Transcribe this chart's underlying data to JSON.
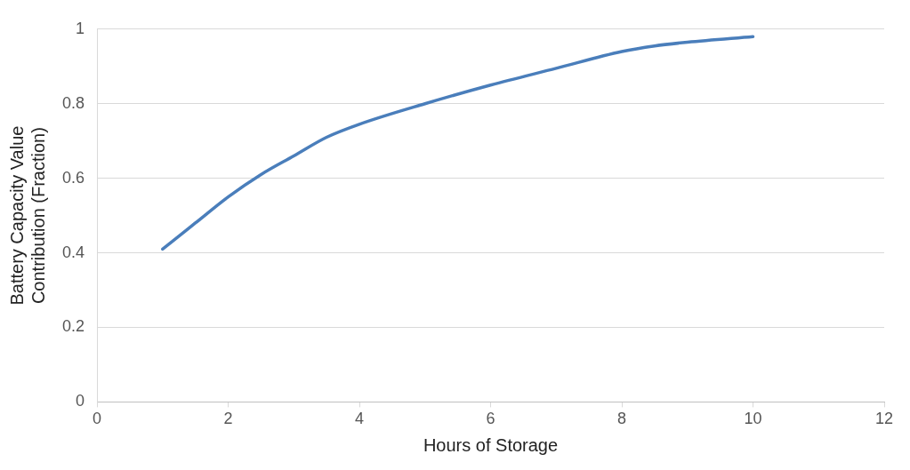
{
  "chart_data": {
    "type": "line",
    "xlabel": "Hours of Storage",
    "ylabel": "Battery Capacity Value Contribution (Fraction)",
    "xlim": [
      0,
      12
    ],
    "xticks": [
      0,
      2,
      4,
      6,
      8,
      10,
      12
    ],
    "ylim": [
      0,
      1
    ],
    "yticks": [
      0,
      0.2,
      0.4,
      0.6,
      0.8,
      1
    ],
    "grid": "y",
    "legend": false,
    "series": [
      {
        "color": "#4a7ebb",
        "x": [
          1,
          1.5,
          2,
          2.5,
          3,
          3.5,
          4,
          5,
          6,
          7,
          8,
          8.5,
          9,
          10
        ],
        "values": [
          0.41,
          0.48,
          0.55,
          0.61,
          0.66,
          0.71,
          0.745,
          0.8,
          0.85,
          0.895,
          0.94,
          0.955,
          0.965,
          0.98
        ]
      }
    ]
  }
}
